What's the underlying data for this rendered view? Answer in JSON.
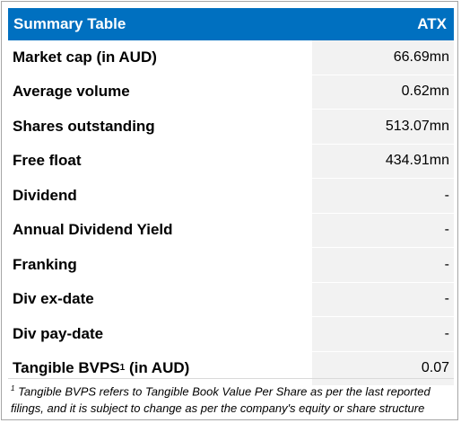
{
  "header": {
    "title": "Summary Table",
    "ticker": "ATX"
  },
  "rows": [
    {
      "label": "Market cap (in AUD)",
      "value": "66.69mn"
    },
    {
      "label": "Average volume",
      "value": "0.62mn"
    },
    {
      "label": "Shares outstanding",
      "value": "513.07mn"
    },
    {
      "label": "Free float",
      "value": "434.91mn"
    },
    {
      "label": "Dividend",
      "value": "-"
    },
    {
      "label": "Annual Dividend Yield",
      "value": "-"
    },
    {
      "label": "Franking",
      "value": "-"
    },
    {
      "label": "Div ex-date",
      "value": "-"
    },
    {
      "label": "Div pay-date",
      "value": "-"
    },
    {
      "label": "Tangible BVPS",
      "label_sup": "1",
      "label_suffix": " (in AUD)",
      "value": "0.07"
    }
  ],
  "footnote": {
    "marker": "1",
    "text": " Tangible BVPS refers to Tangible Book Value Per Share as per the last reported filings, and it is subject to change as per the company's equity or share structure"
  },
  "colors": {
    "header_bg": "#0070c0",
    "value_bg": "#f2f2f2",
    "border": "#a6a6a6"
  }
}
